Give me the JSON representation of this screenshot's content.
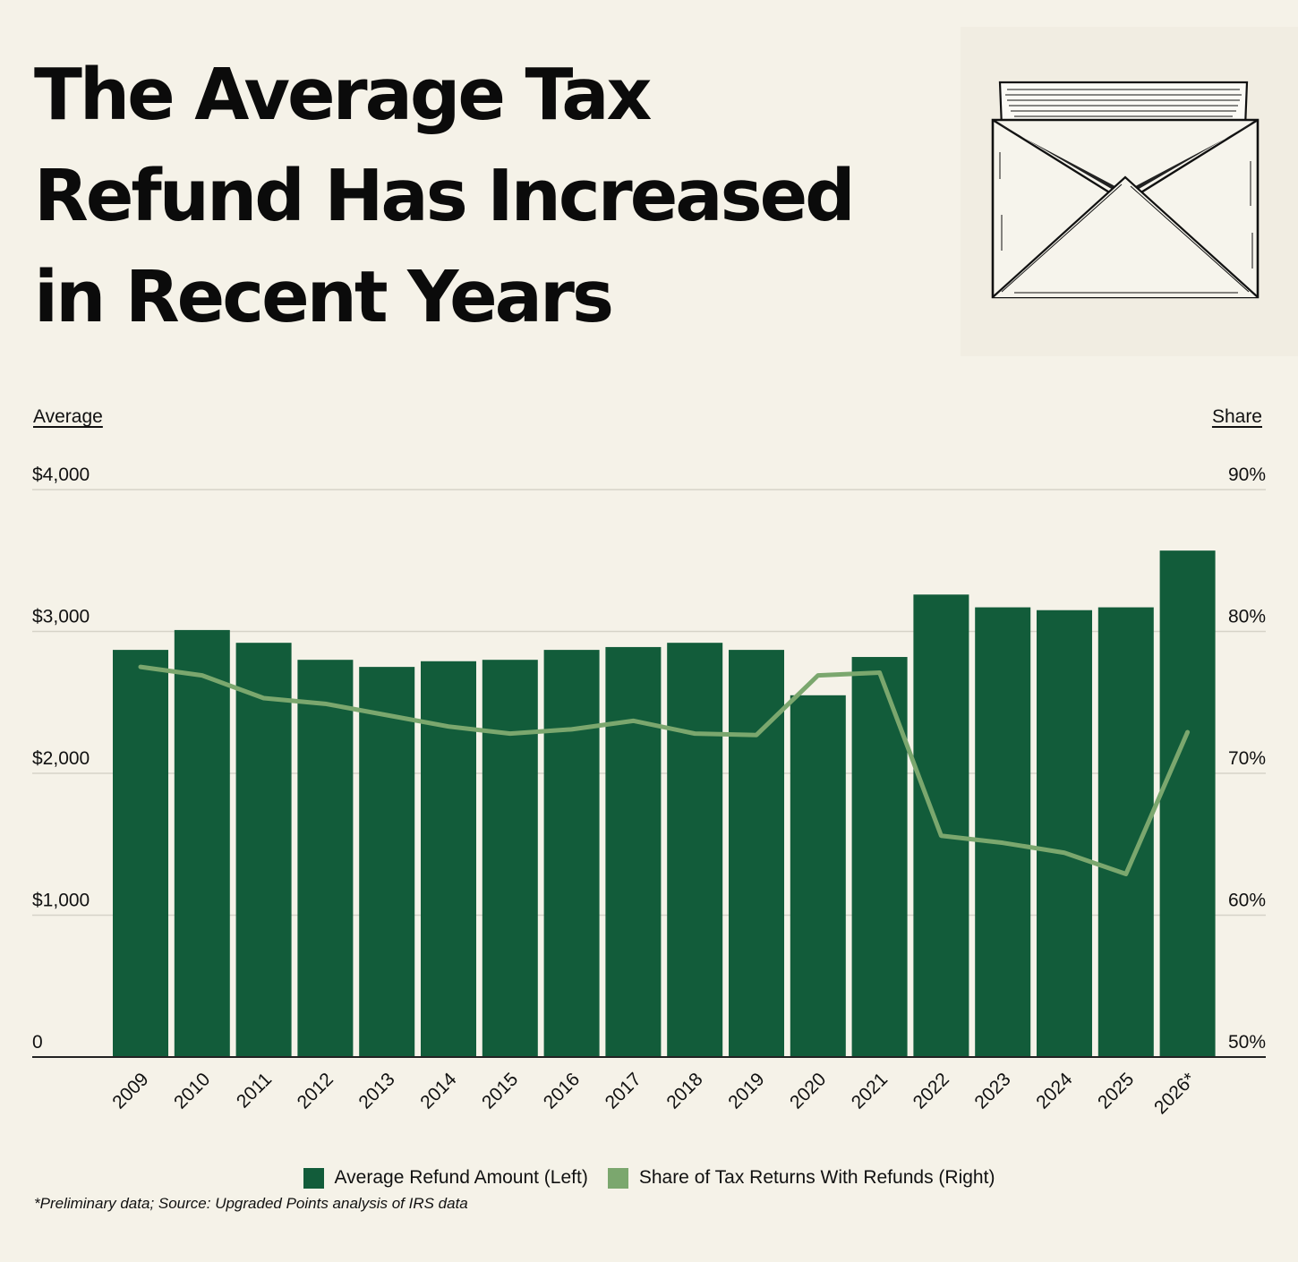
{
  "title": "The Average Tax Refund Has Increased in Recent Years",
  "left_axis_label": "Average",
  "right_axis_label": "Share",
  "footnote": "*Preliminary data;  Source: Upgraded Points analysis of IRS data",
  "colors": {
    "bar": "#125c3a",
    "line": "#7ba76e",
    "background": "#f5f2e8",
    "grid": "#d6d3c8",
    "axis": "#222222"
  },
  "illustration": "envelope-with-letter-sketch",
  "chart_data": {
    "type": "bar",
    "categories": [
      "2009",
      "2010",
      "2011",
      "2012",
      "2013",
      "2014",
      "2015",
      "2016",
      "2017",
      "2018",
      "2019",
      "2020",
      "2021",
      "2022",
      "2023",
      "2024",
      "2025",
      "2026*"
    ],
    "series": [
      {
        "name": "Average Refund Amount (Left)",
        "type": "bar",
        "axis": "left",
        "values": [
          2870,
          3010,
          2920,
          2800,
          2750,
          2790,
          2800,
          2870,
          2890,
          2920,
          2870,
          2550,
          2820,
          3260,
          3170,
          3150,
          3170,
          3570
        ]
      },
      {
        "name": "Share of Tax Returns With Refunds (Right)",
        "type": "line",
        "axis": "right",
        "values": [
          77.5,
          76.9,
          75.3,
          74.9,
          74.1,
          73.3,
          72.8,
          73.1,
          73.7,
          72.8,
          72.7,
          76.9,
          77.1,
          65.6,
          65.1,
          64.4,
          62.9,
          72.9
        ]
      }
    ],
    "left_axis": {
      "ylim": [
        0,
        4000
      ],
      "ticks": [
        "0",
        "$1,000",
        "$2,000",
        "$3,000",
        "$4,000"
      ],
      "tick_values": [
        0,
        1000,
        2000,
        3000,
        4000
      ]
    },
    "right_axis": {
      "ylim": [
        50,
        90
      ],
      "ticks": [
        "50%",
        "60%",
        "70%",
        "80%",
        "90%"
      ],
      "tick_values": [
        50,
        60,
        70,
        80,
        90
      ]
    },
    "grid": true,
    "legend_position": "bottom"
  }
}
